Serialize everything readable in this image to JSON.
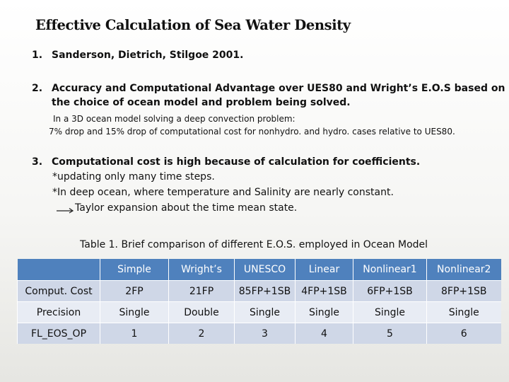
{
  "title": "Effective Calculation of Sea Water Density",
  "items": [
    {
      "number": "1.",
      "lines": [
        "Sanderson, Dietrich, Stilgoe 2001."
      ]
    },
    {
      "number": "2.",
      "lines": [
        "Accuracy and Computational Advantage over UES80 and Wright’s E.O.S based on",
        "the choice of ocean model and problem being solved."
      ],
      "details": [
        "In a 3D ocean model solving a deep convection problem:",
        "7% drop and 15% drop of computational cost for nonhydro. and hydro. cases  relative to UES80."
      ]
    },
    {
      "number": "3.",
      "lines": [
        "Computational cost is high because of calculation for coefficients."
      ],
      "notes": [
        "*updating only many time steps.",
        "*In deep ocean, where temperature and Salinity are nearly constant.",
        "Taylor expansion about the time mean state."
      ]
    }
  ],
  "table": {
    "caption": "Table 1. Brief comparison of different E.O.S. employed in Ocean Model",
    "columns": [
      "",
      "Simple",
      "Wright’s",
      "UNESCO",
      "Linear",
      "Nonlinear1",
      "Nonlinear2"
    ],
    "rows": [
      [
        "Comput. Cost",
        "2FP",
        "21FP",
        "85FP+1SB",
        "4FP+1SB",
        "6FP+1SB",
        "8FP+1SB"
      ],
      [
        "Precision",
        "Single",
        "Double",
        "Single",
        "Single",
        "Single",
        "Single"
      ],
      [
        "FL_EOS_OP",
        "1",
        "2",
        "3",
        "4",
        "5",
        "6"
      ]
    ],
    "colors": {
      "header": "#4f81bd",
      "row_dark": "#cfd7e7",
      "row_light": "#e8ecf4"
    }
  },
  "icons": {
    "arrow": "right-arrow-icon"
  }
}
